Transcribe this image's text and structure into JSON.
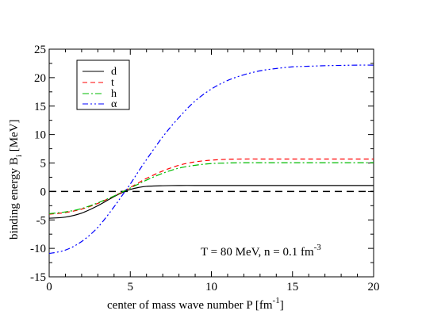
{
  "chart_data": {
    "type": "line",
    "xlabel_main": "center of mass wave number  P   [fm",
    "xlabel_sup": "-1",
    "xlabel_end": "]",
    "ylabel_main": "binding energy    B",
    "ylabel_sub": "i",
    "ylabel_end": "  [MeV]",
    "xlim": [
      0,
      20
    ],
    "ylim": [
      -15,
      25
    ],
    "xticks": [
      0,
      5,
      10,
      15,
      20
    ],
    "yticks": [
      -15,
      -10,
      -5,
      0,
      5,
      10,
      15,
      20,
      25
    ],
    "annotation_main": "T = 80 MeV,   n = 0.1 fm",
    "annotation_sup": "-3",
    "reference_line": {
      "y": 0,
      "style": "dashed",
      "color": "#000000"
    },
    "x": [
      0,
      1,
      2,
      3,
      4,
      4.5,
      5,
      5.5,
      6,
      7,
      8,
      9,
      10,
      11,
      12,
      13,
      14,
      15,
      16,
      17,
      18,
      19,
      20
    ],
    "series": [
      {
        "name": "d",
        "color": "#000000",
        "dash": "none",
        "values": [
          -4.7,
          -4.5,
          -3.8,
          -2.5,
          -0.9,
          -0.2,
          0.35,
          0.7,
          0.9,
          1.0,
          1.05,
          1.05,
          1.05,
          1.05,
          1.05,
          1.05,
          1.05,
          1.05,
          1.05,
          1.05,
          1.05,
          1.05,
          1.05
        ]
      },
      {
        "name": "t",
        "color": "#ff0000",
        "dash": "6,4",
        "values": [
          -4.0,
          -3.7,
          -3.1,
          -2.1,
          -0.8,
          -0.1,
          0.7,
          1.5,
          2.3,
          3.6,
          4.6,
          5.2,
          5.5,
          5.65,
          5.7,
          5.7,
          5.7,
          5.7,
          5.7,
          5.7,
          5.7,
          5.7,
          5.7
        ]
      },
      {
        "name": "h",
        "color": "#00bb00",
        "dash": "8,3,2,3",
        "values": [
          -3.9,
          -3.6,
          -3.0,
          -2.0,
          -0.8,
          -0.1,
          0.6,
          1.3,
          2.0,
          3.2,
          4.1,
          4.6,
          4.9,
          5.0,
          5.05,
          5.05,
          5.05,
          5.05,
          5.05,
          5.05,
          5.05,
          5.05,
          5.05
        ]
      },
      {
        "name": "α",
        "color": "#0000ff",
        "dash": "7,3,2,3,2,3",
        "values": [
          -10.9,
          -10.3,
          -8.8,
          -6.3,
          -2.7,
          -0.7,
          1.3,
          3.5,
          5.6,
          9.6,
          13.0,
          15.9,
          18.0,
          19.5,
          20.5,
          21.2,
          21.6,
          21.9,
          22.0,
          22.1,
          22.15,
          22.2,
          22.2
        ]
      }
    ]
  }
}
